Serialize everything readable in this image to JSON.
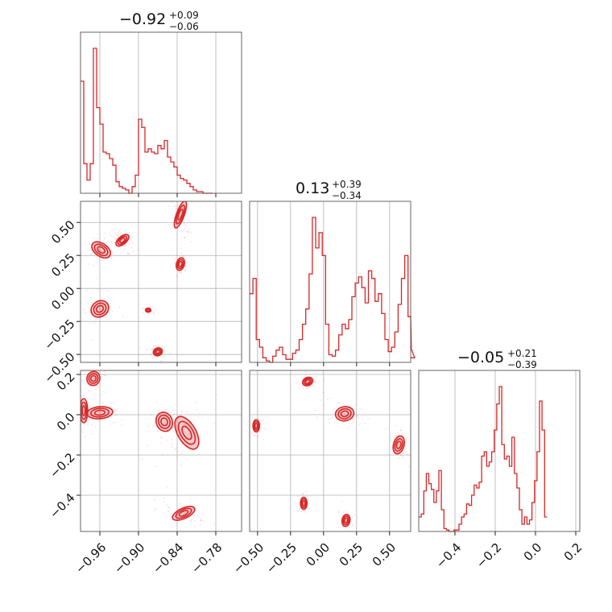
{
  "chart_data": {
    "type": "corner",
    "color": "#d62728",
    "parameters": [
      {
        "title": "−0.92",
        "title_plus": "+0.09",
        "title_minus": "−0.06",
        "range": [
          -0.99,
          -0.74
        ],
        "ticks": [
          -0.96,
          -0.9,
          -0.84,
          -0.78
        ],
        "tick_labels": [
          "−0.96",
          "−0.90",
          "−0.84",
          "−0.78"
        ],
        "histogram": {
          "bin_width": 0.005,
          "counts": [
            0.68,
            0.18,
            0.08,
            0.18,
            0.88,
            0.52,
            0.42,
            0.25,
            0.24,
            0.21,
            0.17,
            0.07,
            0.04,
            0.03,
            0.02,
            0.0,
            0.04,
            0.11,
            0.45,
            0.4,
            0.25,
            0.27,
            0.25,
            0.24,
            0.29,
            0.27,
            0.32,
            0.22,
            0.19,
            0.16,
            0.11,
            0.09,
            0.08,
            0.06,
            0.04,
            0.02,
            0.01,
            0.01,
            0.0,
            0.0,
            0.0
          ]
        }
      },
      {
        "title": "0.13",
        "title_plus": "+0.39",
        "title_minus": "−0.34",
        "range": [
          -0.56,
          0.66
        ],
        "ticks": [
          -0.5,
          -0.25,
          0.0,
          0.25,
          0.5
        ],
        "tick_labels": [
          "−0.50",
          "−0.25",
          "0.00",
          "0.25",
          "0.50"
        ],
        "histogram": {
          "bin_width": 0.025,
          "counts": [
            0.45,
            0.55,
            0.15,
            0.1,
            0.03,
            0.01,
            0.0,
            0.04,
            0.08,
            0.1,
            0.05,
            0.02,
            0.02,
            0.06,
            0.08,
            0.15,
            0.25,
            0.35,
            0.58,
            0.95,
            0.75,
            0.85,
            0.7,
            0.25,
            0.05,
            0.04,
            0.08,
            0.18,
            0.25,
            0.22,
            0.28,
            0.43,
            0.52,
            0.56,
            0.49,
            0.39,
            0.6,
            0.55,
            0.4,
            0.45,
            0.32,
            0.15,
            0.07,
            0.1,
            0.2,
            0.38,
            0.55,
            0.7,
            0.3,
            0.1,
            0.03
          ]
        }
      },
      {
        "title": "−0.05",
        "title_plus": "+0.21",
        "title_minus": "−0.39",
        "range": [
          -0.58,
          0.22
        ],
        "ticks": [
          -0.4,
          -0.2,
          0.0,
          0.2
        ],
        "tick_labels": [
          "−0.4",
          "−0.2",
          "0.0",
          "0.2"
        ],
        "histogram": {
          "bin_width": 0.0125,
          "counts": [
            0.1,
            0.12,
            0.28,
            0.4,
            0.33,
            0.29,
            0.2,
            0.28,
            0.42,
            0.15,
            0.02,
            0.01,
            0.0,
            0.0,
            0.01,
            0.01,
            0.05,
            0.1,
            0.12,
            0.19,
            0.18,
            0.25,
            0.32,
            0.3,
            0.34,
            0.52,
            0.55,
            0.45,
            0.48,
            0.55,
            0.7,
            0.88,
            1.0,
            0.6,
            0.5,
            0.52,
            0.45,
            0.65,
            0.4,
            0.3,
            0.15,
            0.05,
            0.1,
            0.05,
            0.08,
            0.2,
            0.35,
            0.55,
            0.9,
            0.7,
            0.1
          ]
        }
      }
    ],
    "joint_blobs": {
      "p2_vs_p1": [
        {
          "x": -0.958,
          "y": 0.292,
          "sx": 0.01,
          "sy": 0.08,
          "rot": -55
        },
        {
          "x": -0.925,
          "y": 0.365,
          "sx": 0.012,
          "sy": 0.03,
          "rot": -40
        },
        {
          "x": -0.835,
          "y": 0.56,
          "sx": 0.022,
          "sy": 0.03,
          "rot": -70
        },
        {
          "x": -0.835,
          "y": 0.185,
          "sx": 0.01,
          "sy": 0.03,
          "rot": -75
        },
        {
          "x": -0.96,
          "y": -0.155,
          "sx": 0.012,
          "sy": 0.07,
          "rot": 55
        },
        {
          "x": -0.885,
          "y": -0.165,
          "sx": 0.004,
          "sy": 0.015,
          "rot": 0
        },
        {
          "x": -0.87,
          "y": -0.48,
          "sx": 0.006,
          "sy": 0.035,
          "rot": 65
        }
      ],
      "p3_vs_p1": [
        {
          "x": -0.97,
          "y": 0.18,
          "sx": 0.01,
          "sy": 0.035,
          "rot": 20
        },
        {
          "x": -0.985,
          "y": 0.02,
          "sx": 0.006,
          "sy": 0.06,
          "rot": 0
        },
        {
          "x": -0.96,
          "y": 0.01,
          "sx": 0.02,
          "sy": 0.03,
          "rot": -5
        },
        {
          "x": -0.86,
          "y": -0.035,
          "sx": 0.015,
          "sy": 0.04,
          "rot": 70
        },
        {
          "x": -0.825,
          "y": -0.09,
          "sx": 0.028,
          "sy": 0.045,
          "rot": 60
        },
        {
          "x": -0.83,
          "y": -0.49,
          "sx": 0.008,
          "sy": 0.06,
          "rot": 65
        }
      ],
      "p3_vs_p2": [
        {
          "x": -0.12,
          "y": 0.165,
          "sx": 0.04,
          "sy": 0.02,
          "rot": -25
        },
        {
          "x": -0.51,
          "y": -0.055,
          "sx": 0.025,
          "sy": 0.03,
          "rot": 0
        },
        {
          "x": -0.15,
          "y": -0.44,
          "sx": 0.025,
          "sy": 0.03,
          "rot": 0
        },
        {
          "x": 0.17,
          "y": -0.525,
          "sx": 0.03,
          "sy": 0.03,
          "rot": 10
        },
        {
          "x": 0.16,
          "y": 0.005,
          "sx": 0.07,
          "sy": 0.035,
          "rot": -10
        },
        {
          "x": 0.57,
          "y": -0.15,
          "sx": 0.04,
          "sy": 0.045,
          "rot": 15
        }
      ]
    }
  }
}
